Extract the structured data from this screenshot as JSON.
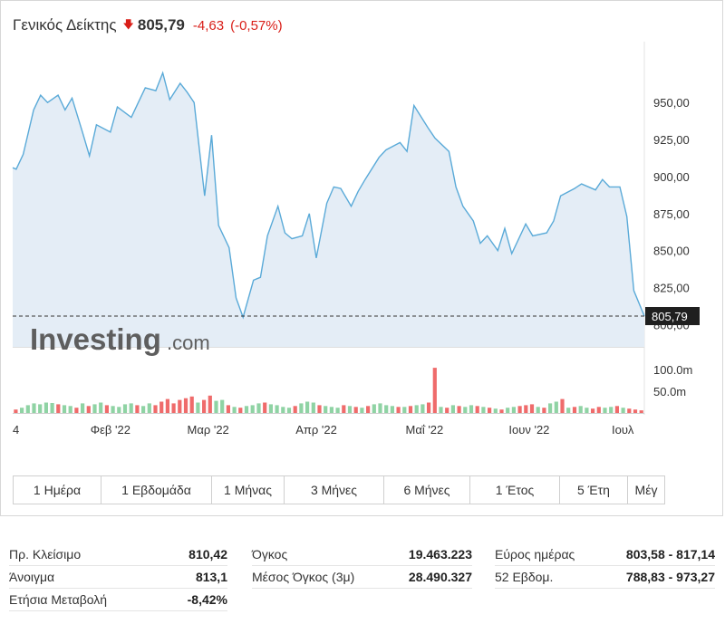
{
  "header": {
    "title": "Γενικός Δείκτης",
    "arrow": "🡇",
    "price": "805,79",
    "change": "-4,63",
    "change_pct": "(-0,57%)"
  },
  "colors": {
    "line": "#5aaad8",
    "area": "#e4edf6",
    "vol_up": "#8fd3a4",
    "vol_down": "#ef6b6b",
    "down": "#d91e18"
  },
  "watermark": {
    "brand": "Investing",
    "suffix": ".com"
  },
  "current_label": "805,79",
  "chart_data": {
    "type": "area",
    "x_range": [
      "2022-01-04",
      "2022-07-04"
    ],
    "x_ticks": [
      {
        "label": "4",
        "date": "2022-01-04"
      },
      {
        "label": "Φεβ '22",
        "date": "2022-02-01"
      },
      {
        "label": "Μαρ '22",
        "date": "2022-03-01"
      },
      {
        "label": "Απρ '22",
        "date": "2022-04-01"
      },
      {
        "label": "Μαΐ '22",
        "date": "2022-05-02"
      },
      {
        "label": "Ιουν '22",
        "date": "2022-06-01"
      },
      {
        "label": "Ιουλ",
        "date": "2022-07-01"
      }
    ],
    "y_ticks": [
      "950,00",
      "925,00",
      "900,00",
      "875,00",
      "850,00",
      "825,00",
      "800,00"
    ],
    "y_range": [
      785,
      985
    ],
    "current_value": 805.79,
    "series": {
      "dates": [
        "2022-01-04",
        "2022-01-05",
        "2022-01-07",
        "2022-01-10",
        "2022-01-12",
        "2022-01-14",
        "2022-01-17",
        "2022-01-19",
        "2022-01-21",
        "2022-01-24",
        "2022-01-26",
        "2022-01-28",
        "2022-02-01",
        "2022-02-03",
        "2022-02-07",
        "2022-02-09",
        "2022-02-11",
        "2022-02-14",
        "2022-02-16",
        "2022-02-18",
        "2022-02-21",
        "2022-02-23",
        "2022-02-25",
        "2022-02-28",
        "2022-03-02",
        "2022-03-04",
        "2022-03-07",
        "2022-03-09",
        "2022-03-11",
        "2022-03-14",
        "2022-03-16",
        "2022-03-18",
        "2022-03-21",
        "2022-03-23",
        "2022-03-25",
        "2022-03-28",
        "2022-03-30",
        "2022-04-01",
        "2022-04-04",
        "2022-04-06",
        "2022-04-08",
        "2022-04-11",
        "2022-04-13",
        "2022-04-15",
        "2022-04-19",
        "2022-04-21",
        "2022-04-25",
        "2022-04-27",
        "2022-04-29",
        "2022-05-03",
        "2022-05-05",
        "2022-05-09",
        "2022-05-11",
        "2022-05-13",
        "2022-05-16",
        "2022-05-18",
        "2022-05-20",
        "2022-05-23",
        "2022-05-25",
        "2022-05-27",
        "2022-05-31",
        "2022-06-02",
        "2022-06-06",
        "2022-06-08",
        "2022-06-10",
        "2022-06-14",
        "2022-06-16",
        "2022-06-20",
        "2022-06-22",
        "2022-06-24",
        "2022-06-27",
        "2022-06-29",
        "2022-07-01",
        "2022-07-04"
      ],
      "values": [
        906,
        905,
        915,
        945,
        955,
        950,
        955,
        945,
        953,
        930,
        914,
        935,
        930,
        947,
        940,
        950,
        960,
        958,
        970,
        952,
        963,
        957,
        950,
        887,
        928,
        867,
        852,
        818,
        805,
        830,
        832,
        860,
        880,
        862,
        858,
        860,
        875,
        845,
        882,
        893,
        892,
        880,
        890,
        898,
        913,
        918,
        923,
        917,
        948,
        933,
        926,
        917,
        893,
        880,
        870,
        855,
        860,
        850,
        865,
        848,
        868,
        860,
        862,
        870,
        887,
        892,
        895,
        891,
        898,
        893,
        893,
        873,
        823,
        805.79
      ]
    }
  },
  "volume": {
    "ticks": [
      "100.0m",
      "50.0m"
    ],
    "y_max": 125,
    "values": [
      8,
      12,
      18,
      22,
      20,
      24,
      23,
      20,
      18,
      16,
      12,
      22,
      16,
      20,
      24,
      18,
      16,
      14,
      20,
      22,
      18,
      16,
      22,
      18,
      26,
      32,
      22,
      30,
      34,
      38,
      24,
      30,
      40,
      28,
      30,
      18,
      14,
      12,
      16,
      18,
      22,
      24,
      20,
      18,
      14,
      12,
      16,
      22,
      26,
      24,
      18,
      16,
      14,
      12,
      18,
      16,
      14,
      12,
      16,
      20,
      22,
      18,
      16,
      14,
      14,
      16,
      18,
      20,
      24,
      104,
      14,
      12,
      18,
      16,
      14,
      18,
      16,
      14,
      12,
      10,
      8,
      12,
      14,
      16,
      18,
      20,
      14,
      12,
      22,
      26,
      32,
      12,
      14,
      16,
      12,
      10,
      14,
      12,
      14,
      16,
      12,
      10,
      8,
      6
    ],
    "down": [
      1,
      0,
      0,
      0,
      0,
      0,
      0,
      1,
      0,
      0,
      1,
      0,
      1,
      0,
      0,
      1,
      0,
      0,
      0,
      0,
      1,
      0,
      0,
      1,
      1,
      1,
      1,
      1,
      1,
      1,
      0,
      1,
      1,
      0,
      0,
      1,
      0,
      1,
      0,
      0,
      0,
      1,
      0,
      0,
      0,
      0,
      1,
      0,
      0,
      0,
      1,
      0,
      0,
      0,
      1,
      0,
      1,
      0,
      1,
      0,
      0,
      0,
      0,
      1,
      0,
      1,
      0,
      0,
      1,
      1,
      0,
      1,
      0,
      1,
      0,
      0,
      1,
      0,
      1,
      0,
      1,
      0,
      0,
      1,
      1,
      1,
      0,
      1,
      0,
      0,
      1,
      0,
      1,
      0,
      0,
      1,
      1,
      0,
      0,
      1,
      0,
      1,
      1,
      1
    ]
  },
  "timeframes": [
    "1 Ημέρα",
    "1 Εβδομάδα",
    "1 Μήνας",
    "3 Μήνες",
    "6 Μήνες",
    "1 Έτος",
    "5 Έτη",
    "Μέγ"
  ],
  "stats": {
    "col1": [
      {
        "label": "Πρ. Κλείσιμο",
        "value": "810,42"
      },
      {
        "label": "Άνοιγμα",
        "value": "813,1"
      },
      {
        "label": "Ετήσια Μεταβολή",
        "value": "-8,42%"
      }
    ],
    "col2": [
      {
        "label": "Όγκος",
        "value": "19.463.223"
      },
      {
        "label": "Μέσος Όγκος (3μ)",
        "value": "28.490.327"
      }
    ],
    "col3": [
      {
        "label": "Εύρος ημέρας",
        "value": "803,58 - 817,14"
      },
      {
        "label": "52 Εβδομ.",
        "value": "788,83 - 973,27"
      }
    ]
  }
}
